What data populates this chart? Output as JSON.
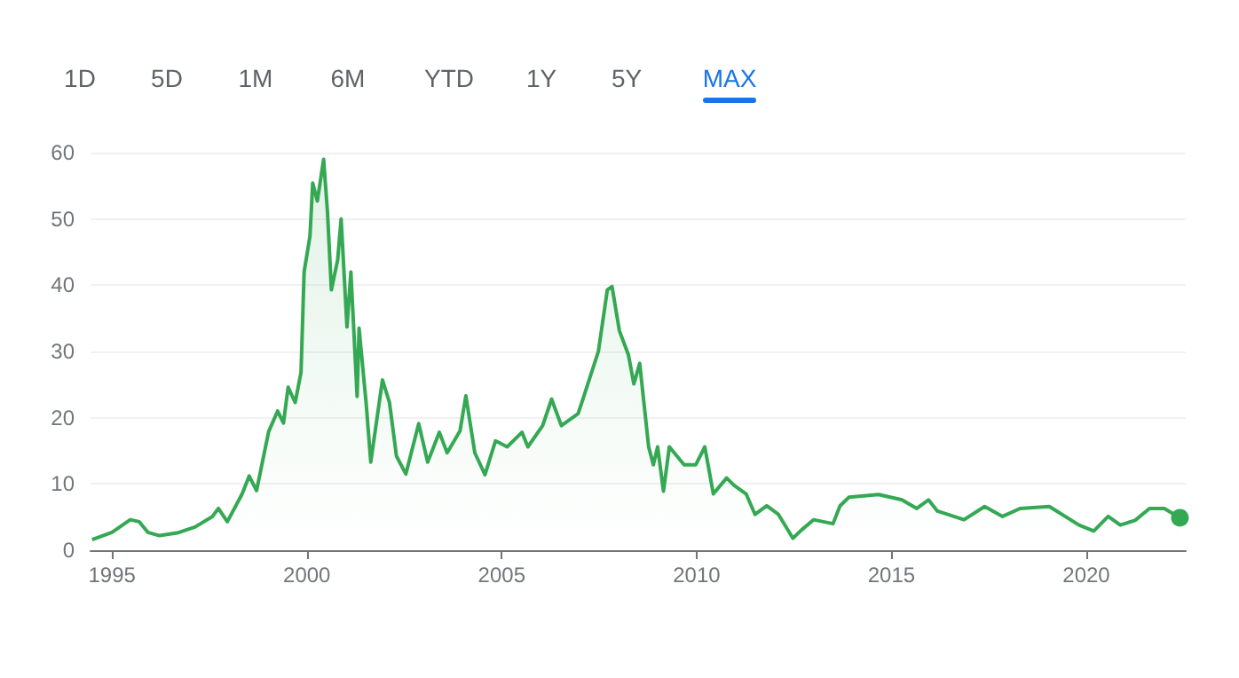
{
  "chart_data": {
    "type": "area",
    "annotations": [
      "1D",
      "5D",
      "1M",
      "6M",
      "YTD",
      "1Y",
      "5Y",
      "MAX"
    ],
    "x": [
      1994.49,
      1995.0,
      1995.47,
      1995.7,
      1995.92,
      1996.22,
      1996.67,
      1997.13,
      1997.58,
      1997.73,
      1997.96,
      1998.34,
      1998.52,
      1998.71,
      1999.02,
      1999.25,
      1999.4,
      1999.52,
      1999.7,
      1999.85,
      1999.93,
      2000.08,
      2000.15,
      2000.27,
      2000.43,
      2000.53,
      2000.63,
      2000.79,
      2000.88,
      2001.03,
      2001.13,
      2001.29,
      2001.34,
      2001.52,
      2001.64,
      2001.94,
      2002.12,
      2002.3,
      2002.54,
      2002.87,
      2003.1,
      2003.4,
      2003.6,
      2003.93,
      2004.08,
      2004.31,
      2004.57,
      2004.84,
      2005.14,
      2005.52,
      2005.67,
      2006.05,
      2006.28,
      2006.53,
      2006.96,
      2007.11,
      2007.48,
      2007.71,
      2007.83,
      2008.02,
      2008.25,
      2008.39,
      2008.54,
      2008.77,
      2008.89,
      2009.0,
      2009.15,
      2009.3,
      2009.68,
      2009.98,
      2010.21,
      2010.43,
      2010.77,
      2010.96,
      2011.27,
      2011.5,
      2011.8,
      2012.1,
      2012.47,
      2012.7,
      2013.0,
      2013.5,
      2013.68,
      2013.91,
      2014.67,
      2015.27,
      2015.65,
      2015.95,
      2016.18,
      2016.86,
      2017.39,
      2017.85,
      2018.3,
      2019.05,
      2019.81,
      2020.19,
      2020.56,
      2020.87,
      2021.25,
      2021.62,
      2022.0,
      2022.4
    ],
    "series": [
      {
        "color": "#34a853",
        "values": [
          1.6,
          2.7,
          4.6,
          4.3,
          2.7,
          2.2,
          2.6,
          3.5,
          5.1,
          6.3,
          4.3,
          8.5,
          11.2,
          9.0,
          17.9,
          21,
          19.2,
          24.6,
          22.3,
          26.8,
          42,
          47.4,
          55.4,
          52.7,
          59,
          51,
          39.3,
          43.8,
          50,
          33.7,
          42,
          23.2,
          33.5,
          22.3,
          13.3,
          25.7,
          22.3,
          14.2,
          11.5,
          19.1,
          13.3,
          17.8,
          14.7,
          18.0,
          23.3,
          14.7,
          11.4,
          16.5,
          15.6,
          17.8,
          15.6,
          18.8,
          22.8,
          18.8,
          20.6,
          23.3,
          30,
          39.3,
          39.8,
          33.1,
          29.5,
          25.1,
          28.2,
          15.6,
          12.9,
          15.6,
          8.9,
          15.6,
          12.9,
          12.9,
          15.6,
          8.5,
          10.9,
          9.8,
          8.5,
          5.4,
          6.7,
          5.4,
          1.8,
          3.1,
          4.6,
          4.0,
          6.7,
          8.0,
          8.4,
          7.6,
          6.3,
          7.6,
          5.9,
          4.6,
          6.6,
          5.1,
          6.3,
          6.6,
          3.8,
          2.9,
          5.1,
          3.8,
          4.5,
          6.3,
          6.3,
          4.9
        ]
      }
    ],
    "xlim": [
      1994.45,
      2022.55
    ],
    "xticks": [
      1995,
      2000,
      2005,
      2010,
      2015,
      2020
    ],
    "ylim": [
      0,
      60
    ],
    "yticks": [
      0,
      10,
      20,
      30,
      40,
      50,
      60
    ],
    "grid": "y"
  }
}
